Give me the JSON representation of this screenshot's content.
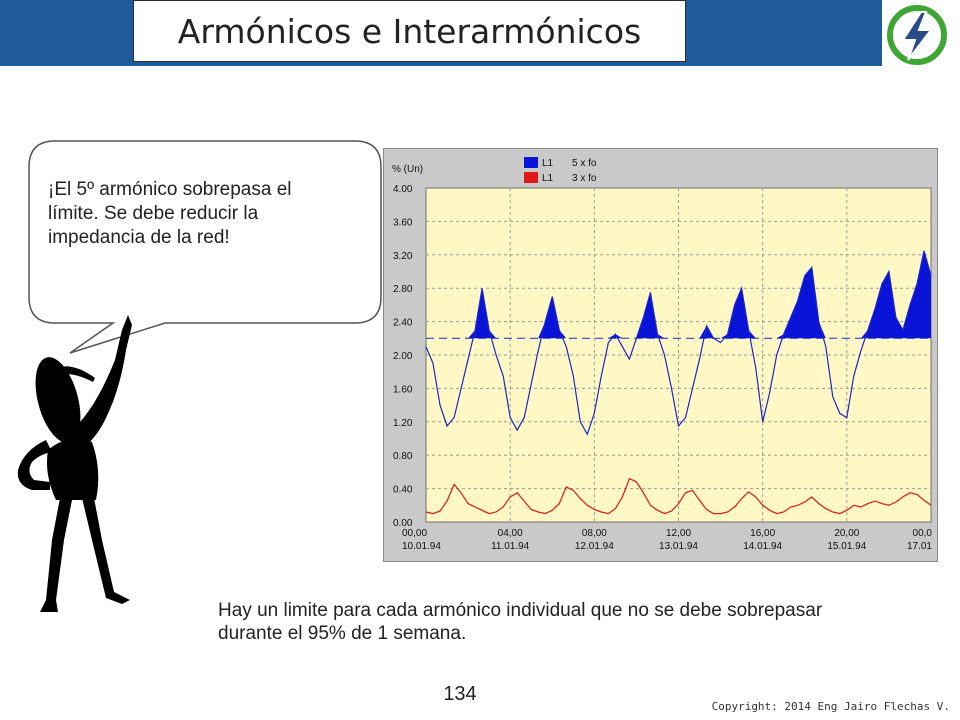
{
  "slide": {
    "title": "Armónicos e Interarmónicos",
    "bubble_text": "¡El 5º armónico sobrepasa el límite. Se debe reducir la impedancia de la red!",
    "caption": "Hay un limite para cada armónico individual que no se debe sobrepasar durante el 95% de 1 semana.",
    "page_number": "134",
    "copyright": "Copyright: 2014 Eng Jairo Flechas V.",
    "colors": {
      "header": "#1f5a9a",
      "plot_bg": "#fff8c4",
      "logo_green": "#3fa535",
      "logo_blue": "#2a4a8a"
    }
  },
  "chart_data": {
    "type": "line",
    "ylabel": "% (Un)",
    "ylim": [
      0,
      4.0
    ],
    "yticks": [
      "0.00",
      "0.40",
      "0.80",
      "1.20",
      "1.60",
      "2.00",
      "2.40",
      "2.80",
      "3.20",
      "3.60",
      "4.00"
    ],
    "xticks": [
      {
        "time": "00,00",
        "date": "10.01.94"
      },
      {
        "time": "04,00",
        "date": "11.01.94"
      },
      {
        "time": "08,00",
        "date": "12.01.94"
      },
      {
        "time": "12,00",
        "date": "13.01.94"
      },
      {
        "time": "16,00",
        "date": "14.01.94"
      },
      {
        "time": "20,00",
        "date": "15.01.94"
      },
      {
        "time": "00,0",
        "date": "17.01"
      }
    ],
    "limit": 2.2,
    "legend": {
      "position": "top",
      "entries": [
        {
          "phase": "L1",
          "label": "5 x fo",
          "color": "#0a14d8"
        },
        {
          "phase": "L1",
          "label": "3 x fo",
          "color": "#e01818"
        }
      ]
    },
    "grid": true,
    "series": [
      {
        "name": "5 x fo",
        "color": "#1a28c8",
        "values": [
          2.1,
          1.9,
          1.4,
          1.15,
          1.25,
          1.6,
          1.95,
          2.3,
          2.8,
          2.3,
          2.0,
          1.75,
          1.25,
          1.1,
          1.25,
          1.65,
          2.05,
          2.4,
          2.7,
          2.3,
          2.1,
          1.75,
          1.2,
          1.05,
          1.3,
          1.75,
          2.15,
          2.25,
          2.1,
          1.95,
          2.2,
          2.45,
          2.75,
          2.25,
          2.0,
          1.6,
          1.15,
          1.25,
          1.6,
          1.95,
          2.35,
          2.2,
          2.15,
          2.25,
          2.6,
          2.8,
          2.3,
          1.85,
          1.2,
          1.55,
          2.0,
          2.25,
          2.45,
          2.65,
          2.95,
          3.05,
          2.4,
          2.1,
          1.5,
          1.3,
          1.25,
          1.75,
          2.05,
          2.3,
          2.55,
          2.85,
          3.0,
          2.45,
          2.3,
          2.6,
          2.85,
          3.25,
          2.95
        ]
      },
      {
        "name": "3 x fo",
        "color": "#d81a1a",
        "values": [
          0.12,
          0.1,
          0.13,
          0.25,
          0.45,
          0.35,
          0.22,
          0.18,
          0.14,
          0.1,
          0.12,
          0.18,
          0.3,
          0.35,
          0.25,
          0.15,
          0.12,
          0.1,
          0.14,
          0.22,
          0.42,
          0.38,
          0.28,
          0.2,
          0.15,
          0.12,
          0.1,
          0.16,
          0.3,
          0.52,
          0.48,
          0.35,
          0.2,
          0.14,
          0.1,
          0.13,
          0.22,
          0.35,
          0.38,
          0.26,
          0.15,
          0.1,
          0.1,
          0.12,
          0.18,
          0.28,
          0.36,
          0.3,
          0.2,
          0.14,
          0.1,
          0.12,
          0.18,
          0.2,
          0.24,
          0.3,
          0.22,
          0.16,
          0.12,
          0.1,
          0.14,
          0.2,
          0.18,
          0.22,
          0.25,
          0.22,
          0.2,
          0.24,
          0.3,
          0.35,
          0.33,
          0.26,
          0.2
        ]
      }
    ]
  }
}
